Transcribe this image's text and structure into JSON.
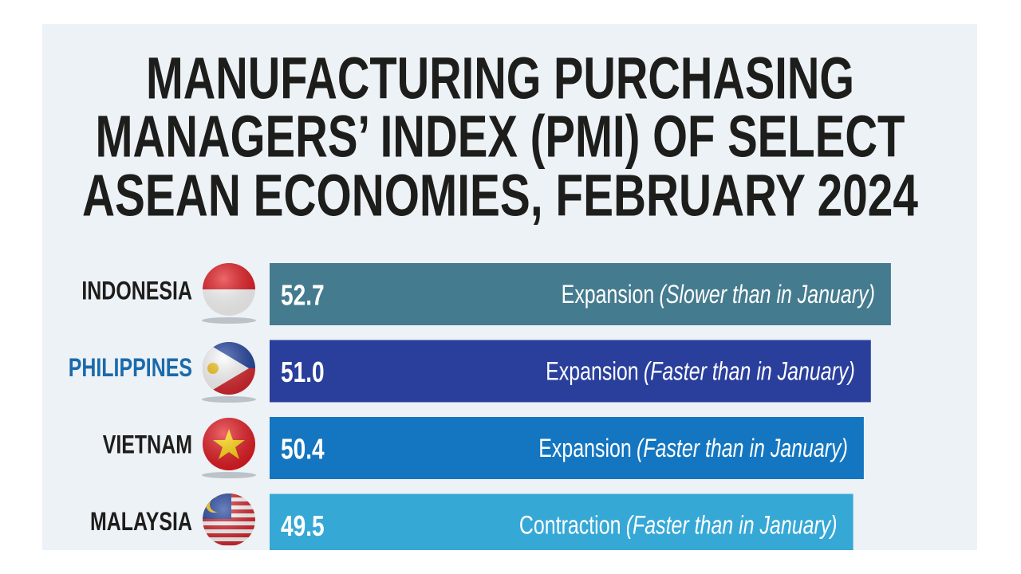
{
  "chart_data": {
    "type": "bar",
    "orientation": "horizontal",
    "title": [
      "MANUFACTURING PURCHASING",
      "MANAGERS’ INDEX (PMI) OF SELECT",
      "ASEAN ECONOMIES, FEBRUARY 2024"
    ],
    "categories": [
      "INDONESIA",
      "PHILIPPINES",
      "VIETNAM",
      "MALAYSIA"
    ],
    "category_colors": [
      "#1d1d1b",
      "#1a6aab",
      "#1d1d1b",
      "#1d1d1b"
    ],
    "values": [
      52.7,
      51.0,
      50.4,
      49.5
    ],
    "value_labels": [
      "52.7",
      "51.0",
      "50.4",
      "49.5"
    ],
    "colors": [
      "#457b8e",
      "#2a3f9c",
      "#1476c0",
      "#36a8d6"
    ],
    "status": [
      "Expansion",
      "Expansion",
      "Expansion",
      "Contraction"
    ],
    "notes": [
      "(Slower than in January)",
      "(Faster than in January)",
      "(Faster than in January)",
      "(Faster than in January)"
    ]
  }
}
